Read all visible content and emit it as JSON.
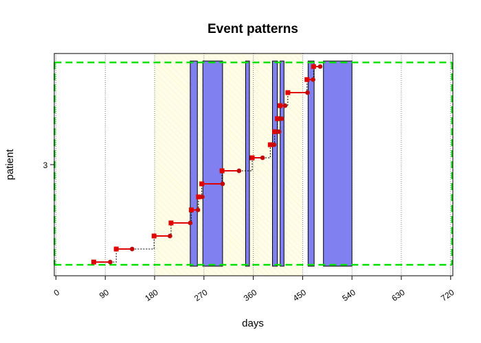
{
  "chart_data": {
    "type": "scatter",
    "title": "Event patterns",
    "xlabel": "days",
    "ylabel": "patient",
    "xlim": [
      -3,
      724
    ],
    "x_ticks": [
      0,
      90,
      180,
      270,
      360,
      450,
      540,
      630,
      720
    ],
    "x_tick_labels": [
      "0",
      "90",
      "180",
      "270",
      "360",
      "450",
      "540",
      "630",
      "720"
    ],
    "y_tick_labels": [
      "3"
    ],
    "grid_x": true,
    "observation_window": [
      0,
      720
    ],
    "follow_up_band": [
      180,
      450
    ],
    "exposure_periods": [
      [
        245,
        258
      ],
      [
        268,
        304
      ],
      [
        346,
        353
      ],
      [
        395,
        404
      ],
      [
        409,
        416
      ],
      [
        460,
        471
      ],
      [
        488,
        540
      ]
    ],
    "event_pairs": [
      {
        "start": 69,
        "end": 99
      },
      {
        "start": 110,
        "end": 139
      },
      {
        "start": 179,
        "end": 208
      },
      {
        "start": 210,
        "end": 245
      },
      {
        "start": 247,
        "end": 259
      },
      {
        "start": 260,
        "end": 267
      },
      {
        "start": 266,
        "end": 304
      },
      {
        "start": 303,
        "end": 334
      },
      {
        "start": 358,
        "end": 377
      },
      {
        "start": 391,
        "end": 398
      },
      {
        "start": 399,
        "end": 407
      },
      {
        "start": 404,
        "end": 412
      },
      {
        "start": 409,
        "end": 418
      },
      {
        "start": 423,
        "end": 459
      },
      {
        "start": 458,
        "end": 469
      },
      {
        "start": 470,
        "end": 482
      }
    ],
    "colors": {
      "exposure_fill": "#8080f0",
      "band_fill": "#fffde8",
      "window_line": "#00e000",
      "event_line": "#e00000",
      "start_marker": "#e00000",
      "end_marker": "#cc0000",
      "grid": "#777777",
      "connector": "#000000"
    }
  }
}
